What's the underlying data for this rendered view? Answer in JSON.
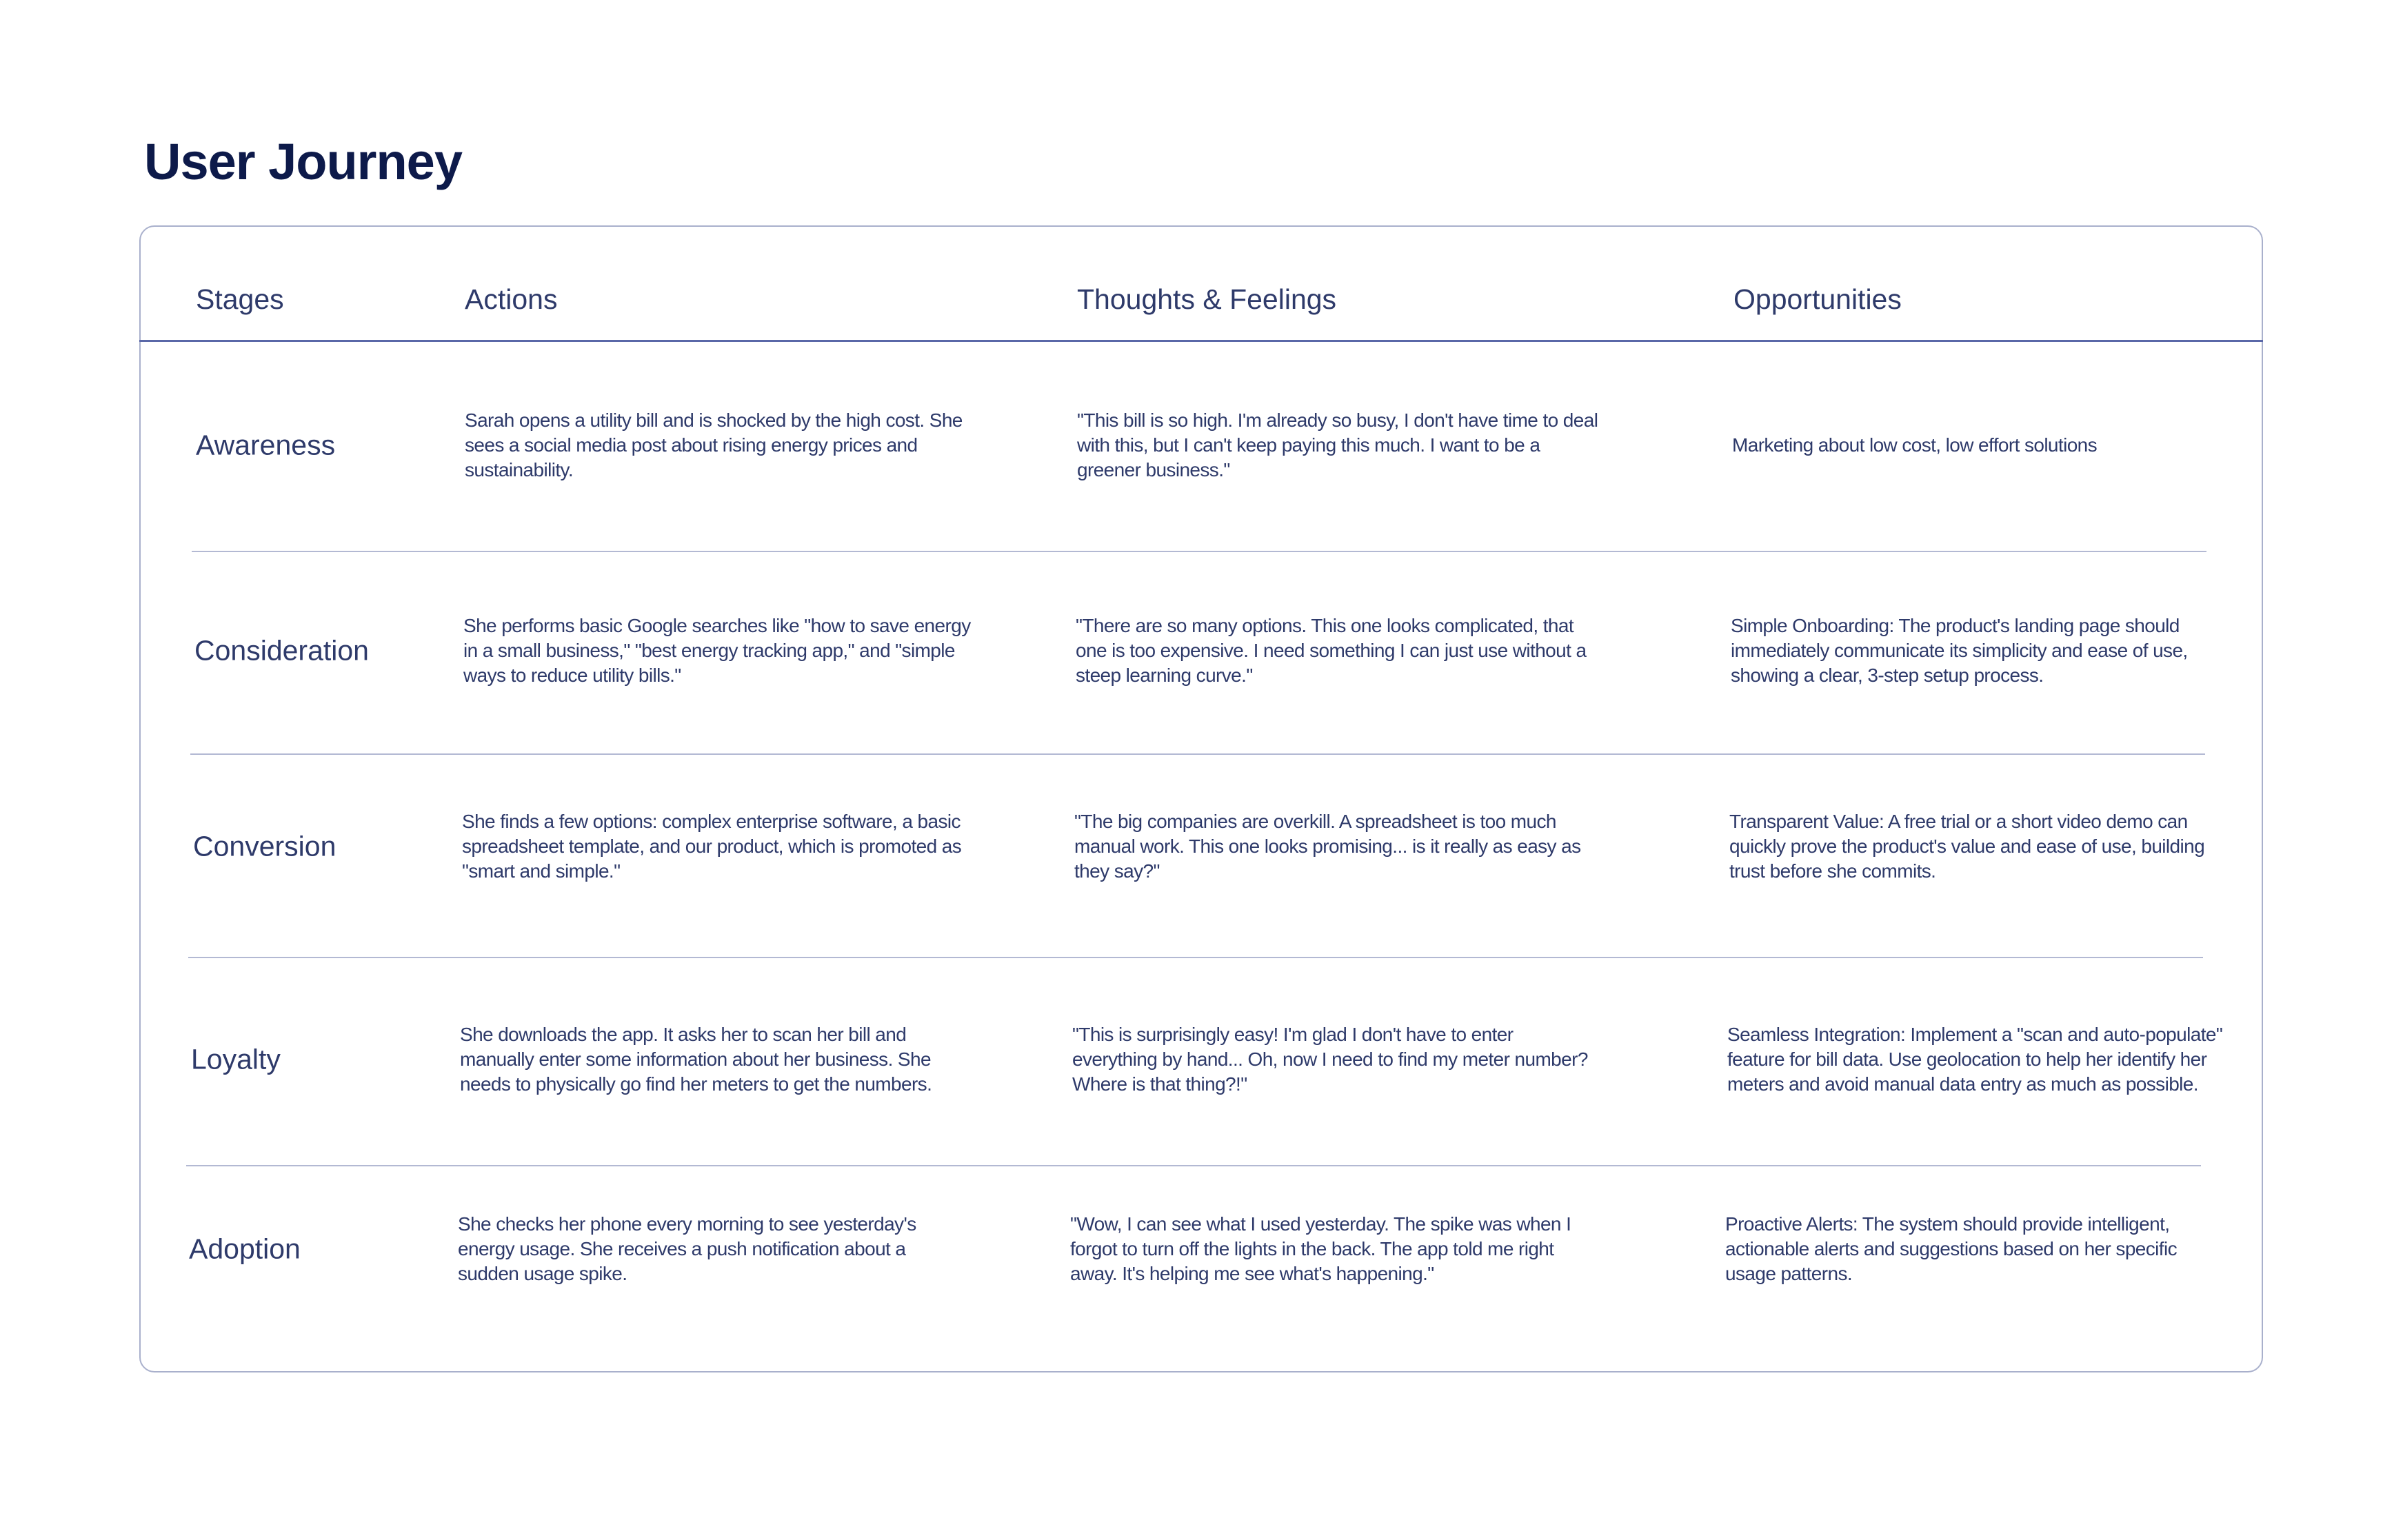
{
  "title": "User Journey",
  "colors": {
    "title": "#0d1a4a",
    "text": "#2e3a6a",
    "border": "#a9b0cc",
    "header_rule": "#5a68a8"
  },
  "columns": [
    "Stages",
    "Actions",
    "Thoughts & Feelings",
    "Opportunities"
  ],
  "rows": [
    {
      "stage": "Awareness",
      "actions": "Sarah opens a utility bill and is shocked by the high cost. She sees a social media post about rising energy prices and sustainability.",
      "thoughts": "\"This bill is so high. I'm already so busy, I don't have time to deal with this, but I can't keep paying this much. I want to be a greener business.\"",
      "opportunities": "Marketing about low cost, low effort solutions"
    },
    {
      "stage": "Consideration",
      "actions": "She performs basic Google searches like \"how to save energy in a small business,\" \"best energy tracking app,\" and \"simple ways to reduce utility bills.\"",
      "thoughts": "\"There are so many options. This one looks complicated, that one is too expensive. I need something I can just use without a steep learning curve.\"",
      "opportunities": "Simple Onboarding: The product's landing page should immediately communicate its simplicity and ease of use, showing a clear, 3-step setup process."
    },
    {
      "stage": "Conversion",
      "actions": "She finds a few options: complex enterprise software, a basic spreadsheet template, and our product, which is promoted as \"smart and simple.\"",
      "thoughts": "\"The big companies are overkill. A spreadsheet is too much manual work. This one looks promising... is it really as easy as they say?\"",
      "opportunities": "Transparent Value: A free trial or a short video demo can quickly prove the product's value and ease of use, building trust before she commits."
    },
    {
      "stage": "Loyalty",
      "actions": "She downloads the app. It asks her to scan her bill and manually enter some information about her business. She needs to physically go find her meters to get the numbers.",
      "thoughts": "\"This is surprisingly easy! I'm glad I don't have to enter everything by hand... Oh, now I need to find my meter number? Where is that thing?!\"",
      "opportunities": "Seamless Integration: Implement a \"scan and auto-populate\" feature for bill data. Use geolocation to help her identify her meters and avoid manual data entry as much as possible."
    },
    {
      "stage": "Adoption",
      "actions": "She checks her phone every morning to see yesterday's energy usage. She receives a push notification about a sudden usage spike.",
      "thoughts": "\"Wow, I can see what I used yesterday. The spike was when I forgot to turn off the lights in the back. The app told me right away. It's helping me see what's happening.\"",
      "opportunities": "Proactive Alerts: The system should provide intelligent, actionable alerts and suggestions based on her specific usage patterns."
    }
  ]
}
